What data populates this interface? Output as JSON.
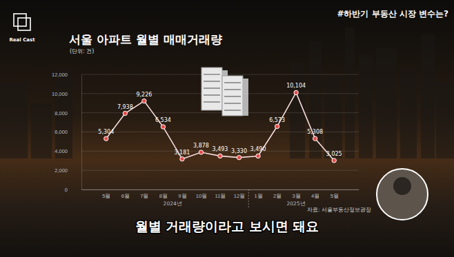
{
  "chart_data": {
    "type": "line",
    "title": "서울 아파트 월별 매매거래량",
    "subtitle": "(단위: 건)",
    "hashtag": "#하반기 부동산 시장 변수는?",
    "brand": "Real Cast",
    "caption": "월별 거래량이라고 보시면 돼요",
    "source": "자료: 서울부동산정보광장",
    "categories": [
      "5월",
      "6월",
      "7월",
      "8월",
      "9월",
      "10월",
      "11월",
      "12월",
      "1월",
      "2월",
      "3월",
      "4월",
      "5월"
    ],
    "x_groups": [
      {
        "label": "2024년",
        "from": 0,
        "to": 7
      },
      {
        "label": "2025년",
        "from": 8,
        "to": 12
      }
    ],
    "values": [
      5304,
      7938,
      9226,
      6534,
      3181,
      3878,
      3493,
      3330,
      3490,
      6573,
      10104,
      5308,
      3025
    ],
    "value_labels": [
      "5,304",
      "7,938",
      "9,226",
      "6,534",
      "3,181",
      "3,878",
      "3,493",
      "3,330",
      "3,490",
      "6,573",
      "10,104",
      "5,308",
      "3,025"
    ],
    "color": "#e84a4a",
    "marker": "circle",
    "data_labels": true,
    "grid": true,
    "ylim": [
      0,
      12000
    ],
    "yticks": [
      0,
      {
        "value": 2000,
        "label": "2,000"
      },
      {
        "value": 4000,
        "label": "4,000"
      },
      {
        "value": 6000,
        "label": "6,000"
      },
      {
        "value": 8000,
        "label": "8,000"
      },
      {
        "value": 10000,
        "label": "10,000"
      },
      {
        "value": 12000,
        "label": "12,000"
      }
    ]
  }
}
